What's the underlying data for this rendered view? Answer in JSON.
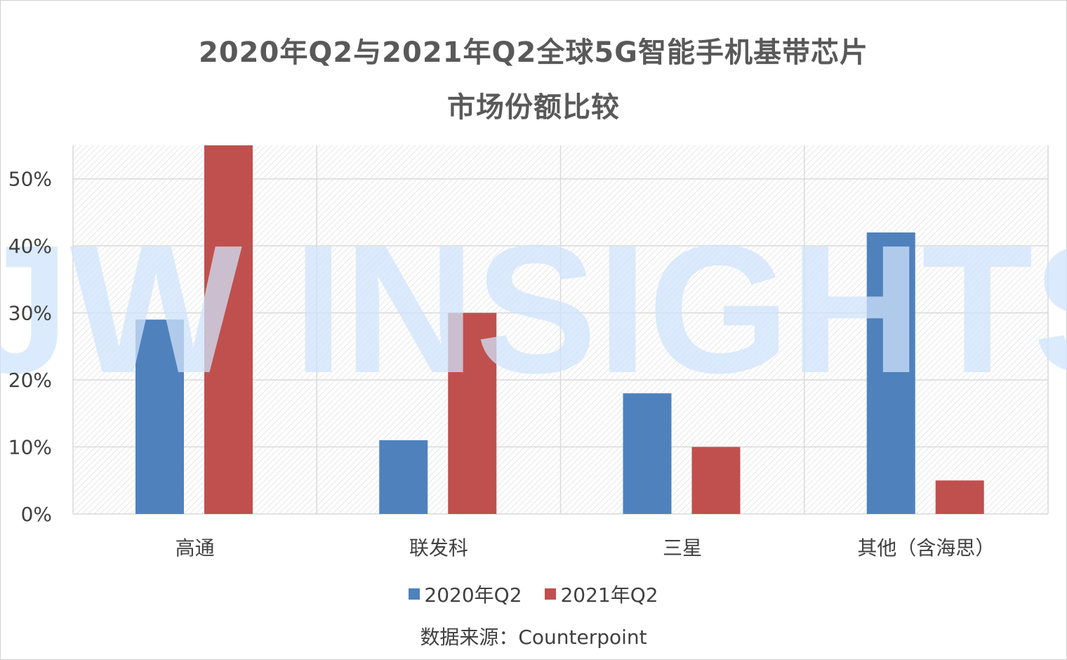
{
  "title_line1": "2020年Q2与2021年Q2全球5G智能手机基带芯片",
  "title_line2": "市场份额比较",
  "watermark": "JW INSIGHTS",
  "source": "数据来源：Counterpoint",
  "colors": {
    "series_2020": "#4f81bd",
    "series_2021": "#c0504d",
    "grid": "#d9d9d9",
    "watermark": "#cfe3fb"
  },
  "chart_data": {
    "type": "bar",
    "categories": [
      "高通",
      "联发科",
      "三星",
      "其他（含海思）"
    ],
    "series": [
      {
        "name": "2020年Q2",
        "values": [
          29,
          11,
          18,
          42
        ]
      },
      {
        "name": "2021年Q2",
        "values": [
          55,
          30,
          10,
          5
        ]
      }
    ],
    "yticks": [
      "0%",
      "10%",
      "20%",
      "30%",
      "40%",
      "50%"
    ],
    "ylim": [
      0,
      55
    ],
    "y_unit": "%",
    "grid": true,
    "legend_position": "bottom"
  }
}
